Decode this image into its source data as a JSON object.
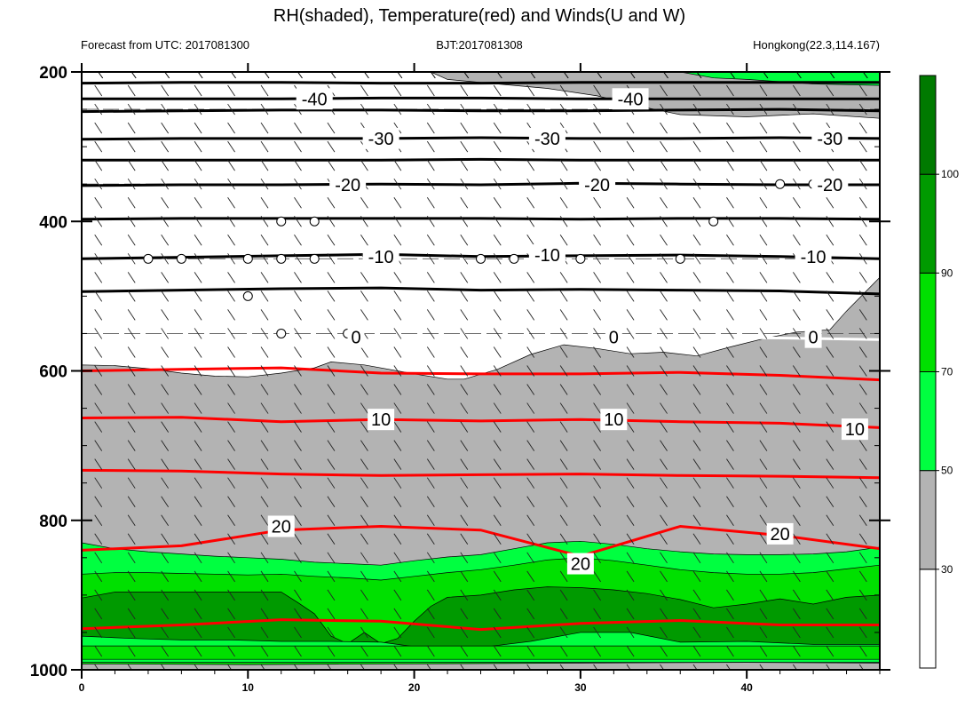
{
  "title": "RH(shaded), Temperature(red) and Winds(U and W)",
  "subtitle_left": "Forecast from UTC: 2017081300",
  "subtitle_center": "BJT:2017081308",
  "subtitle_right": "Hongkong(22.3,114.167)",
  "chart_data": {
    "type": "contour-cross-section",
    "x_ticks": [
      "0",
      "10",
      "20",
      "30",
      "40"
    ],
    "xlim": [
      0,
      48
    ],
    "y_ticks": [
      "200",
      "400",
      "600",
      "800",
      "1000"
    ],
    "ylim": [
      1000,
      200
    ],
    "colors": {
      "gray": "#b3b3b3",
      "green_light": "#00ff40",
      "green_mid": "#00e000",
      "green_dark": "#009a00",
      "green_darkest": "#007a00",
      "temp_line": "#ff0000"
    },
    "colorbar": {
      "levels": [
        "30",
        "50",
        "70",
        "90",
        "100"
      ],
      "colors": [
        "#ffffff",
        "#b3b3b3",
        "#00ff40",
        "#00e000",
        "#009a00",
        "#007a00"
      ]
    },
    "rh_regions": [
      {
        "name": "gray-main",
        "color": "#b3b3b3",
        "points": [
          [
            0,
            592
          ],
          [
            2,
            593
          ],
          [
            4,
            597
          ],
          [
            6,
            603
          ],
          [
            8,
            607
          ],
          [
            10,
            608
          ],
          [
            12,
            603
          ],
          [
            14,
            596
          ],
          [
            15,
            588
          ],
          [
            17,
            592
          ],
          [
            20,
            604
          ],
          [
            22,
            611
          ],
          [
            23,
            611
          ],
          [
            25,
            598
          ],
          [
            27,
            578
          ],
          [
            29,
            565
          ],
          [
            31,
            570
          ],
          [
            33,
            577
          ],
          [
            35,
            575
          ],
          [
            37,
            580
          ],
          [
            39,
            568
          ],
          [
            41,
            557
          ],
          [
            43,
            548
          ],
          [
            45,
            545
          ],
          [
            46,
            520
          ],
          [
            48,
            475
          ],
          [
            48,
            1000
          ],
          [
            0,
            1000
          ]
        ]
      },
      {
        "name": "gray-top",
        "color": "#b3b3b3",
        "points": [
          [
            21,
            200
          ],
          [
            48,
            200
          ],
          [
            48,
            262
          ],
          [
            44,
            256
          ],
          [
            40,
            260
          ],
          [
            36,
            257
          ],
          [
            34,
            248
          ],
          [
            31,
            232
          ],
          [
            28,
            222
          ],
          [
            25,
            216
          ],
          [
            22,
            210
          ]
        ]
      },
      {
        "name": "green-light",
        "color": "#00ff40",
        "points": [
          [
            0,
            830
          ],
          [
            2,
            838
          ],
          [
            4,
            842
          ],
          [
            6,
            845
          ],
          [
            8,
            848
          ],
          [
            10,
            850
          ],
          [
            12,
            852
          ],
          [
            14,
            856
          ],
          [
            16,
            858
          ],
          [
            18,
            860
          ],
          [
            20,
            854
          ],
          [
            22,
            849
          ],
          [
            24,
            846
          ],
          [
            26,
            838
          ],
          [
            28,
            830
          ],
          [
            30,
            828
          ],
          [
            32,
            832
          ],
          [
            34,
            838
          ],
          [
            36,
            842
          ],
          [
            38,
            845
          ],
          [
            40,
            846
          ],
          [
            42,
            846
          ],
          [
            44,
            845
          ],
          [
            46,
            842
          ],
          [
            48,
            836
          ],
          [
            48,
            1000
          ],
          [
            0,
            1000
          ]
        ]
      },
      {
        "name": "green-light-top",
        "color": "#00ff40",
        "points": [
          [
            36,
            200
          ],
          [
            48,
            200
          ],
          [
            48,
            218
          ],
          [
            44,
            216
          ],
          [
            40,
            210
          ],
          [
            38,
            208
          ]
        ]
      },
      {
        "name": "green-mid",
        "color": "#00e000",
        "points": [
          [
            0,
            872
          ],
          [
            2,
            870
          ],
          [
            4,
            870
          ],
          [
            6,
            871
          ],
          [
            8,
            872
          ],
          [
            10,
            873
          ],
          [
            12,
            872
          ],
          [
            14,
            875
          ],
          [
            16,
            877
          ],
          [
            18,
            880
          ],
          [
            20,
            875
          ],
          [
            22,
            870
          ],
          [
            24,
            866
          ],
          [
            26,
            860
          ],
          [
            28,
            853
          ],
          [
            30,
            850
          ],
          [
            32,
            854
          ],
          [
            34,
            860
          ],
          [
            36,
            866
          ],
          [
            38,
            870
          ],
          [
            40,
            872
          ],
          [
            42,
            872
          ],
          [
            44,
            870
          ],
          [
            46,
            865
          ],
          [
            48,
            860
          ],
          [
            48,
            1000
          ],
          [
            0,
            1000
          ]
        ]
      },
      {
        "name": "green-dark",
        "color": "#009a00",
        "points": [
          [
            0,
            904
          ],
          [
            2,
            896
          ],
          [
            4,
            896
          ],
          [
            6,
            896
          ],
          [
            8,
            896
          ],
          [
            10,
            896
          ],
          [
            12,
            896
          ],
          [
            13,
            910
          ],
          [
            14,
            925
          ],
          [
            15,
            955
          ],
          [
            16,
            965
          ],
          [
            17,
            950
          ],
          [
            18,
            965
          ],
          [
            19,
            958
          ],
          [
            20,
            935
          ],
          [
            21,
            915
          ],
          [
            22,
            903
          ],
          [
            24,
            900
          ],
          [
            26,
            893
          ],
          [
            28,
            889
          ],
          [
            30,
            890
          ],
          [
            32,
            893
          ],
          [
            34,
            898
          ],
          [
            36,
            906
          ],
          [
            38,
            917
          ],
          [
            40,
            912
          ],
          [
            42,
            905
          ],
          [
            44,
            912
          ],
          [
            46,
            903
          ],
          [
            48,
            900
          ],
          [
            48,
            990
          ],
          [
            0,
            990
          ]
        ]
      },
      {
        "name": "green-light-lower",
        "color": "#00ff40",
        "points": [
          [
            0,
            955
          ],
          [
            3,
            958
          ],
          [
            6,
            960
          ],
          [
            9,
            960
          ],
          [
            12,
            962
          ],
          [
            15,
            962
          ],
          [
            18,
            963
          ],
          [
            21,
            972
          ],
          [
            24,
            970
          ],
          [
            27,
            962
          ],
          [
            30,
            950
          ],
          [
            33,
            950
          ],
          [
            36,
            963
          ],
          [
            40,
            962
          ],
          [
            44,
            966
          ],
          [
            47,
            966
          ],
          [
            48,
            966
          ],
          [
            48,
            990
          ],
          [
            0,
            990
          ]
        ]
      },
      {
        "name": "green-mid-bottom",
        "color": "#00e000",
        "points": [
          [
            0,
            968
          ],
          [
            48,
            968
          ],
          [
            48,
            986
          ],
          [
            0,
            986
          ]
        ]
      },
      {
        "name": "gray-bottom",
        "color": "#b3b3b3",
        "points": [
          [
            0,
            992
          ],
          [
            10,
            993
          ],
          [
            20,
            992
          ],
          [
            30,
            991
          ],
          [
            40,
            990
          ],
          [
            48,
            991
          ],
          [
            48,
            1000
          ],
          [
            0,
            1000
          ]
        ]
      }
    ],
    "black_contours": [
      {
        "y": [
          215,
          214,
          214,
          215,
          215,
          214,
          214,
          214,
          214
        ]
      },
      {
        "y": [
          236,
          236,
          236,
          235,
          235,
          236,
          236,
          236,
          236
        ]
      },
      {
        "y": [
          253,
          252,
          251,
          251,
          252,
          252,
          251,
          250,
          252
        ]
      },
      {
        "y": [
          290,
          289,
          289,
          289,
          288,
          289,
          289,
          288,
          289
        ]
      },
      {
        "y": [
          318,
          318,
          318,
          318,
          317,
          318,
          318,
          318,
          318
        ]
      },
      {
        "y": [
          352,
          351,
          351,
          350,
          351,
          349,
          350,
          351,
          351
        ]
      },
      {
        "y": [
          397,
          396,
          396,
          396,
          396,
          397,
          396,
          396,
          397
        ]
      },
      {
        "y": [
          450,
          448,
          446,
          444,
          447,
          446,
          445,
          447,
          450
        ]
      },
      {
        "y": [
          494,
          492,
          490,
          489,
          492,
          491,
          492,
          493,
          497
        ]
      }
    ],
    "temperature_lines": [
      {
        "label": "0",
        "color": "#ffffff",
        "y": [
          555,
          556,
          556,
          555,
          556,
          556,
          555,
          556,
          558
        ]
      },
      {
        "label": "",
        "color": "#ff0000",
        "y": [
          600,
          598,
          596,
          603,
          604,
          604,
          602,
          606,
          612
        ]
      },
      {
        "label": "10",
        "color": "#ff0000",
        "y": [
          663,
          662,
          668,
          665,
          667,
          665,
          668,
          670,
          676
        ]
      },
      {
        "label": "",
        "color": "#ff0000",
        "y": [
          733,
          734,
          738,
          740,
          739,
          738,
          740,
          741,
          743
        ]
      },
      {
        "label": "20",
        "color": "#ff0000",
        "y": [
          840,
          834,
          813,
          808,
          813,
          848,
          808,
          820,
          838
        ]
      },
      {
        "label": "",
        "color": "#ff0000",
        "y": [
          945,
          940,
          933,
          935,
          946,
          938,
          934,
          940,
          940
        ]
      }
    ],
    "contour_labels": [
      {
        "text": "-40",
        "x": 14,
        "y": 236,
        "color": "#000000"
      },
      {
        "text": "-40",
        "x": 33,
        "y": 236,
        "color": "#000000"
      },
      {
        "text": "-30",
        "x": 18,
        "y": 289,
        "color": "#000000"
      },
      {
        "text": "-30",
        "x": 28,
        "y": 289,
        "color": "#000000"
      },
      {
        "text": "-30",
        "x": 45,
        "y": 289,
        "color": "#000000"
      },
      {
        "text": "-20",
        "x": 16,
        "y": 351,
        "color": "#000000"
      },
      {
        "text": "-20",
        "x": 31,
        "y": 351,
        "color": "#000000"
      },
      {
        "text": "-20",
        "x": 45,
        "y": 351,
        "color": "#000000"
      },
      {
        "text": "-10",
        "x": 18,
        "y": 447,
        "color": "#000000"
      },
      {
        "text": "-10",
        "x": 28,
        "y": 445,
        "color": "#000000"
      },
      {
        "text": "-10",
        "x": 44,
        "y": 447,
        "color": "#000000"
      },
      {
        "text": "0",
        "x": 16.5,
        "y": 555,
        "color": "#000000"
      },
      {
        "text": "0",
        "x": 32,
        "y": 555,
        "color": "#000000"
      },
      {
        "text": "0",
        "x": 44,
        "y": 555,
        "color": "#000000"
      },
      {
        "text": "10",
        "x": 18,
        "y": 665,
        "color": "#000000"
      },
      {
        "text": "10",
        "x": 32,
        "y": 665,
        "color": "#000000"
      },
      {
        "text": "10",
        "x": 46.5,
        "y": 678,
        "color": "#000000"
      },
      {
        "text": "20",
        "x": 12,
        "y": 808,
        "color": "#000000"
      },
      {
        "text": "20",
        "x": 30,
        "y": 858,
        "color": "#000000"
      },
      {
        "text": "20",
        "x": 42,
        "y": 818,
        "color": "#000000"
      }
    ],
    "calm_circles": [
      [
        4,
        450
      ],
      [
        6,
        450
      ],
      [
        10,
        450
      ],
      [
        12,
        450
      ],
      [
        14,
        450
      ],
      [
        24,
        450
      ],
      [
        26,
        450
      ],
      [
        30,
        450
      ],
      [
        36,
        450
      ],
      [
        12,
        400
      ],
      [
        14,
        400
      ],
      [
        38,
        400
      ],
      [
        10,
        500
      ],
      [
        12,
        550
      ],
      [
        16,
        550
      ],
      [
        42,
        350
      ],
      [
        44,
        350
      ]
    ],
    "dashed_pressure_levels": [
      250,
      350,
      450,
      550
    ],
    "wind_levels": [
      225,
      250,
      275,
      300,
      325,
      350,
      375,
      400,
      425,
      450,
      475,
      500,
      525,
      550,
      575,
      600,
      625,
      650,
      675,
      700,
      725,
      750,
      775,
      800,
      825,
      850,
      875,
      900,
      925,
      950,
      975,
      1000
    ]
  }
}
